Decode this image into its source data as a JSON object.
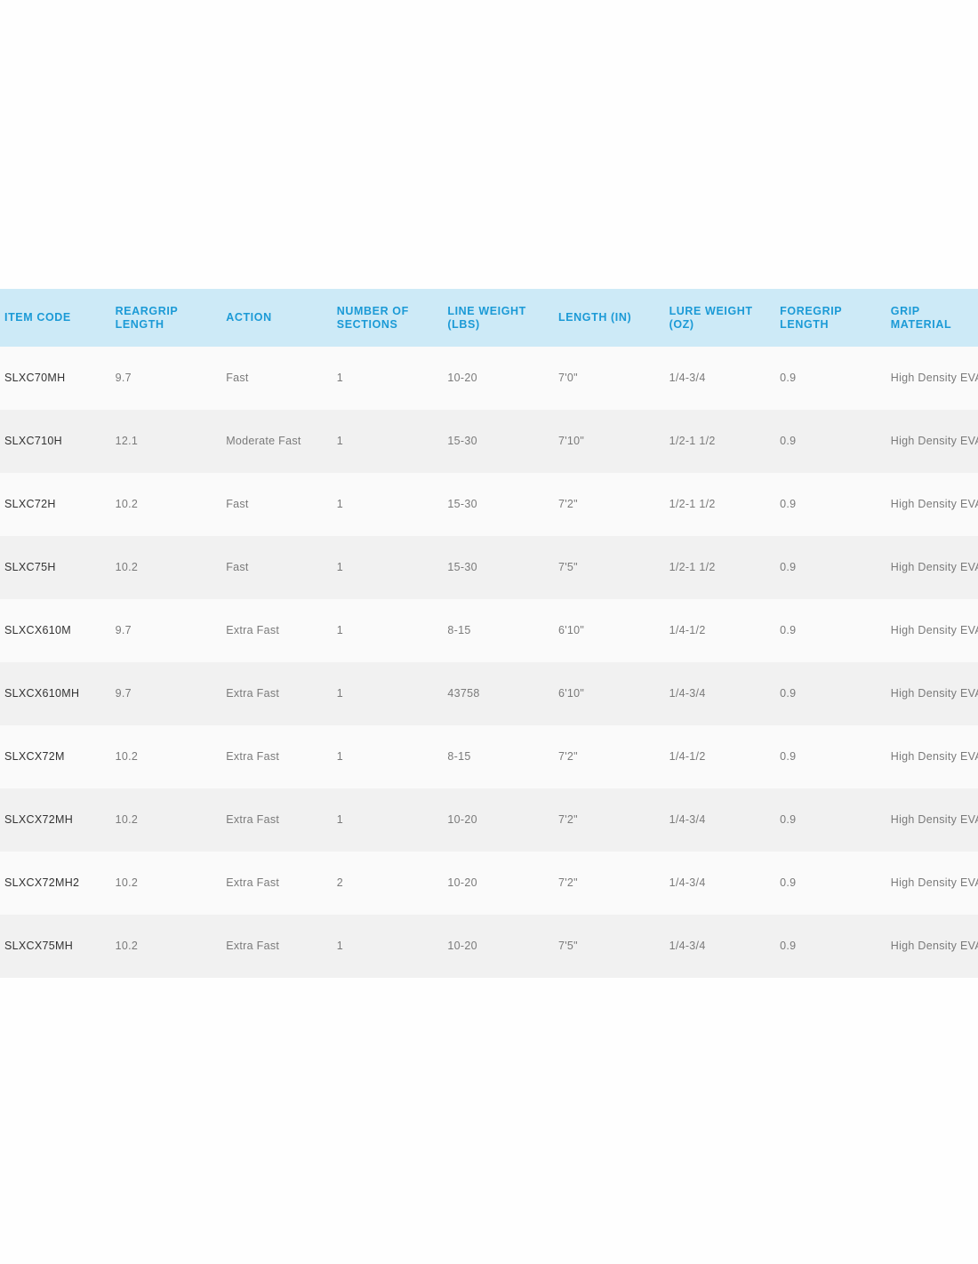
{
  "table": {
    "headers": [
      [
        "ITEM CODE"
      ],
      [
        "REARGRIP",
        "LENGTH"
      ],
      [
        "ACTION"
      ],
      [
        "NUMBER OF",
        "SECTIONS"
      ],
      [
        "LINE WEIGHT",
        "(LBS)"
      ],
      [
        "LENGTH (IN)"
      ],
      [
        "LURE WEIGHT",
        "(OZ)"
      ],
      [
        "FOREGRIP",
        "LENGTH"
      ],
      [
        "GRIP",
        "MATERIAL"
      ]
    ],
    "rows": [
      [
        "SLXC70MH",
        "9.7",
        "Fast",
        "1",
        "10-20",
        "7'0\"",
        "1/4-3/4",
        "0.9",
        "High Density EVA"
      ],
      [
        "SLXC710H",
        "12.1",
        "Moderate Fast",
        "1",
        "15-30",
        "7'10\"",
        "1/2-1 1/2",
        "0.9",
        "High Density EVA"
      ],
      [
        "SLXC72H",
        "10.2",
        "Fast",
        "1",
        "15-30",
        "7'2\"",
        "1/2-1 1/2",
        "0.9",
        "High Density EVA"
      ],
      [
        "SLXC75H",
        "10.2",
        "Fast",
        "1",
        "15-30",
        "7'5\"",
        "1/2-1 1/2",
        "0.9",
        "High Density EVA"
      ],
      [
        "SLXCX610M",
        "9.7",
        "Extra Fast",
        "1",
        "8-15",
        "6'10\"",
        "1/4-1/2",
        "0.9",
        "High Density EVA"
      ],
      [
        "SLXCX610MH",
        "9.7",
        "Extra Fast",
        "1",
        "43758",
        "6'10\"",
        "1/4-3/4",
        "0.9",
        "High Density EVA"
      ],
      [
        "SLXCX72M",
        "10.2",
        "Extra Fast",
        "1",
        "8-15",
        "7'2\"",
        "1/4-1/2",
        "0.9",
        "High Density EVA"
      ],
      [
        "SLXCX72MH",
        "10.2",
        "Extra Fast",
        "1",
        "10-20",
        "7'2\"",
        "1/4-3/4",
        "0.9",
        "High Density EVA"
      ],
      [
        "SLXCX72MH2",
        "10.2",
        "Extra Fast",
        "2",
        "10-20",
        "7'2\"",
        "1/4-3/4",
        "0.9",
        "High Density EVA"
      ],
      [
        "SLXCX75MH",
        "10.2",
        "Extra Fast",
        "1",
        "10-20",
        "7'5\"",
        "1/4-3/4",
        "0.9",
        "High Density EVA"
      ]
    ]
  },
  "colors": {
    "header_bg": "#cdeaf7",
    "header_text": "#1b9ad6",
    "row_odd": "#fafafa",
    "row_even": "#f1f1f1"
  }
}
